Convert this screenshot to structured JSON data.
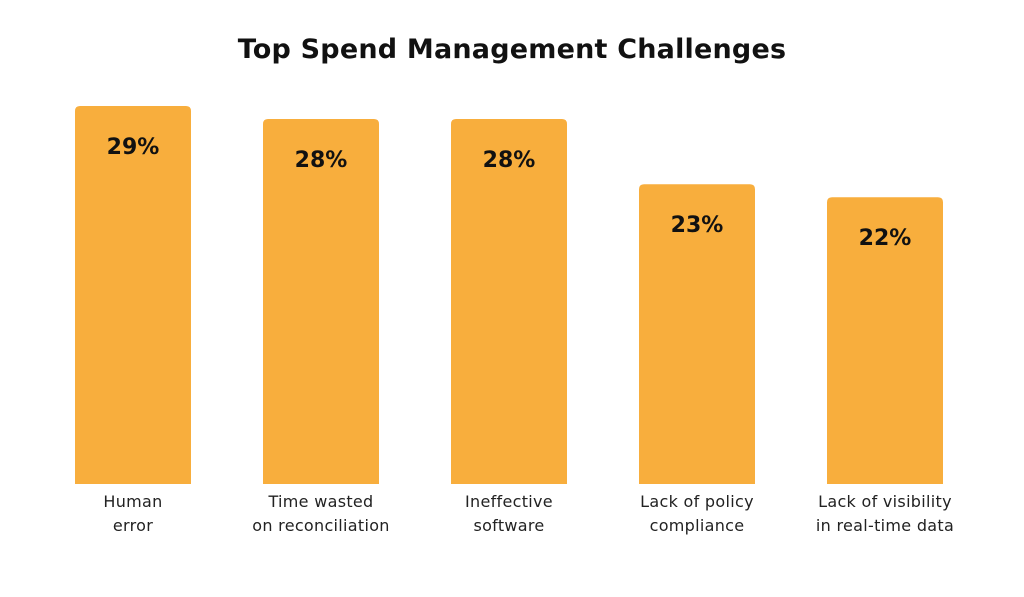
{
  "chart_data": {
    "type": "bar",
    "title": "Top Spend Management Challenges",
    "categories": [
      [
        "Human",
        "error"
      ],
      [
        "Time wasted",
        "on reconciliation"
      ],
      [
        "Ineffective",
        "software"
      ],
      [
        "Lack of policy",
        "compliance"
      ],
      [
        "Lack of visibility",
        "in real-time data"
      ]
    ],
    "values": [
      29,
      28,
      28,
      23,
      22
    ],
    "value_labels": [
      "29%",
      "28%",
      "28%",
      "23%",
      "22%"
    ],
    "bar_color": "#F8AE3D",
    "xlabel": "",
    "ylabel": "",
    "ylim": [
      0,
      29
    ],
    "grid": false
  }
}
